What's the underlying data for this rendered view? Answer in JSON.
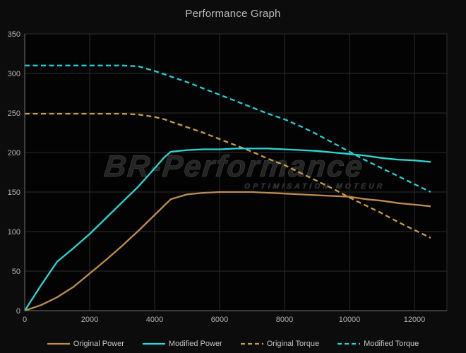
{
  "page": {
    "title": "Performance Graph"
  },
  "watermark": {
    "brand": "BR-Performance",
    "tagline": "OPTIMISATION MOTEUR"
  },
  "colors": {
    "background": "#0c0c0c",
    "plot_background": "#030303",
    "grid": "#2c2c2c",
    "axis": "#6f6f6f",
    "tick_text": "#b5b5b5",
    "title_text": "#bdbdbd",
    "legend_text": "#c6c6c6",
    "watermark_text": "#242424",
    "original_power": "#bf8d4f",
    "modified_power": "#2bd8d5",
    "original_torque": "#c79e43",
    "modified_torque": "#1fd2d8"
  },
  "chart_data": {
    "type": "line",
    "title": "Performance Graph",
    "xlabel": "",
    "ylabel": "",
    "xlim": [
      0,
      13000
    ],
    "ylim": [
      0,
      350
    ],
    "x_ticks": [
      0,
      2000,
      4000,
      6000,
      8000,
      10000,
      12000
    ],
    "y_ticks": [
      0,
      50,
      100,
      150,
      200,
      250,
      300,
      350
    ],
    "grid": true,
    "legend_position": "bottom",
    "x": [
      0,
      500,
      1000,
      1500,
      2000,
      2500,
      3000,
      3500,
      4000,
      4300,
      4500,
      5000,
      5500,
      6000,
      6500,
      7000,
      7500,
      8000,
      8500,
      9000,
      9500,
      10000,
      10500,
      11000,
      11500,
      12000,
      12500
    ],
    "series": [
      {
        "name": "Original Power",
        "color": "#bf8d4f",
        "style": "solid",
        "values": [
          0,
          7,
          17,
          30,
          47,
          64,
          82,
          101,
          121,
          133,
          141,
          147,
          149,
          150,
          150,
          150,
          149,
          148,
          147,
          146,
          145,
          144,
          141,
          139,
          136,
          134,
          132
        ]
      },
      {
        "name": "Modified Power",
        "color": "#2bd8d5",
        "style": "solid",
        "values": [
          0,
          32,
          62,
          79,
          97,
          117,
          137,
          157,
          180,
          194,
          201,
          203,
          204,
          204,
          205,
          205,
          205,
          204,
          203,
          202,
          200,
          198,
          196,
          193,
          191,
          190,
          188
        ]
      },
      {
        "name": "Original Torque",
        "color": "#c79e43",
        "style": "dashed",
        "values": [
          249,
          249,
          249,
          249,
          249,
          249,
          249,
          248,
          245,
          242,
          239,
          232,
          225,
          217,
          209,
          201,
          192,
          184,
          174,
          164,
          154,
          143,
          133,
          123,
          112,
          102,
          92
        ]
      },
      {
        "name": "Modified Torque",
        "color": "#1fd2d8",
        "style": "dashed",
        "values": [
          310,
          310,
          310,
          310,
          310,
          310,
          310,
          309,
          303,
          299,
          296,
          289,
          281,
          273,
          265,
          257,
          249,
          242,
          233,
          223,
          212,
          201,
          190,
          180,
          170,
          160,
          150
        ]
      }
    ]
  }
}
